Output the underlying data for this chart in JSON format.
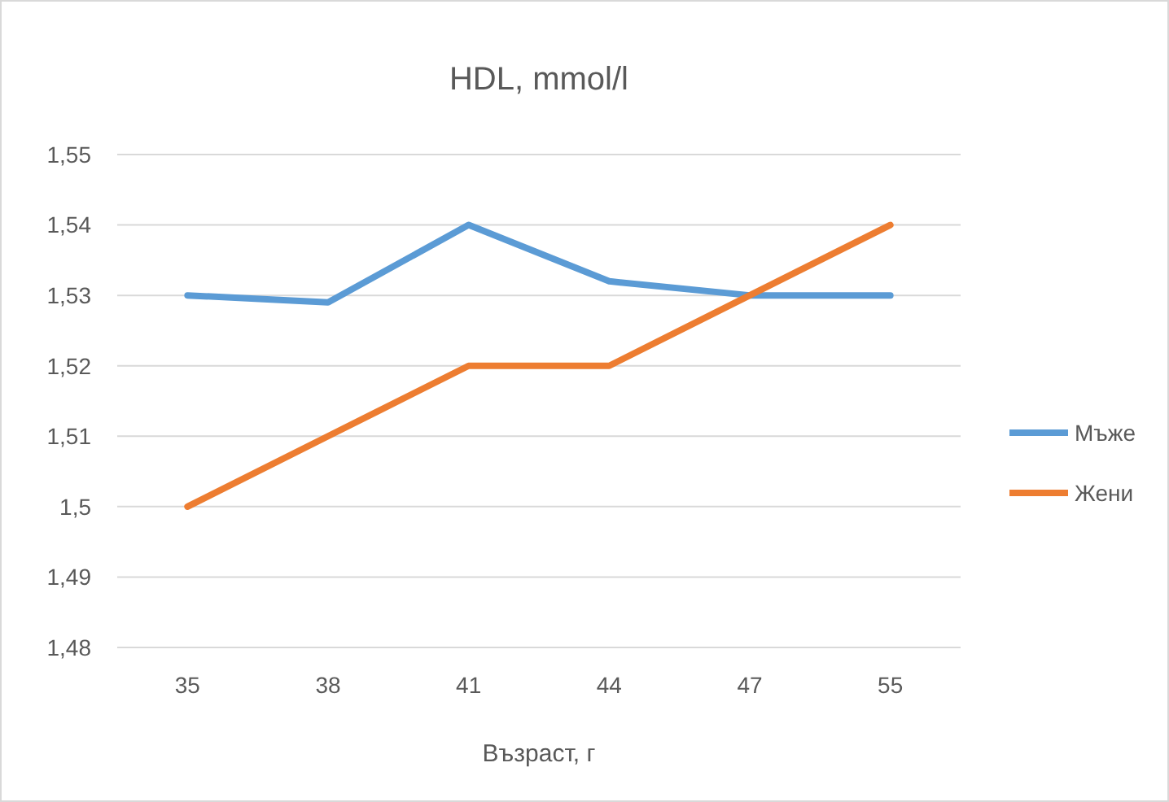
{
  "chart_data": {
    "type": "line",
    "title": "HDL, mmol/l",
    "xlabel": "Възраст, г",
    "categories": [
      "35",
      "38",
      "41",
      "44",
      "47",
      "55"
    ],
    "series": [
      {
        "name": "Мъже",
        "color": "#5b9bd5",
        "values": [
          1.53,
          1.529,
          1.54,
          1.532,
          1.53,
          1.53
        ]
      },
      {
        "name": "Жени",
        "color": "#ed7d31",
        "values": [
          1.5,
          1.51,
          1.52,
          1.52,
          1.53,
          1.54
        ]
      }
    ],
    "ylim": [
      1.48,
      1.55
    ],
    "yticks": [
      {
        "value": 1.48,
        "label": "1,48"
      },
      {
        "value": 1.49,
        "label": "1,49"
      },
      {
        "value": 1.5,
        "label": "1,5"
      },
      {
        "value": 1.51,
        "label": "1,51"
      },
      {
        "value": 1.52,
        "label": "1,52"
      },
      {
        "value": 1.53,
        "label": "1,53"
      },
      {
        "value": 1.54,
        "label": "1,54"
      },
      {
        "value": 1.55,
        "label": "1,55"
      }
    ],
    "grid": "y",
    "legend": "right",
    "marker": "none",
    "line_style": "solid"
  }
}
